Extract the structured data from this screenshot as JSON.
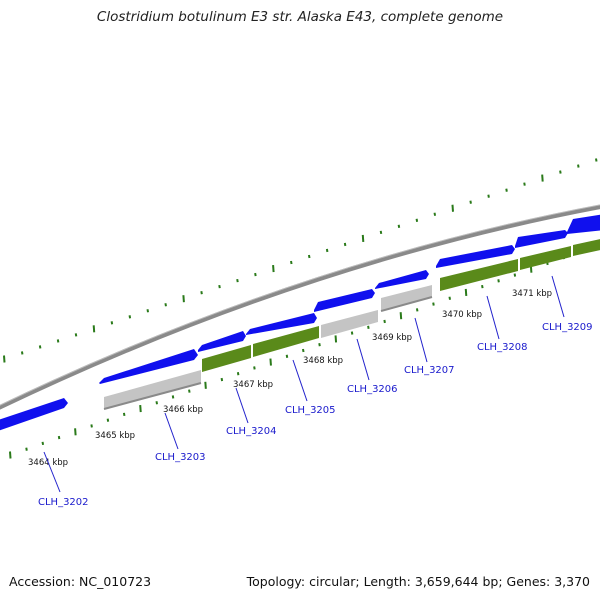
{
  "title": "Clostridium botulinum E3 str. Alaska E43, complete genome",
  "footer": {
    "accession": "Accession: NC_010723",
    "summary": "Topology: circular; Length: 3,659,644 bp; Genes: 3,370"
  },
  "colors": {
    "cds_forward": "#1010ee",
    "cds_reverse_green": "#5a8a1a",
    "cds_reverse_grey": "#c4c4c4",
    "backbone": "#8a8a8a",
    "dots": "#2a7a1a",
    "label_line": "#2222cc"
  },
  "kbp_labels": [
    "3464 kbp",
    "3465 kbp",
    "3466 kbp",
    "3467 kbp",
    "3468 kbp",
    "3469 kbp",
    "3470 kbp",
    "3471 kbp"
  ],
  "gene_labels": [
    "CLH_3202",
    "CLH_3203",
    "CLH_3204",
    "CLH_3205",
    "CLH_3206",
    "CLH_3207",
    "CLH_3208",
    "CLH_3209"
  ]
}
